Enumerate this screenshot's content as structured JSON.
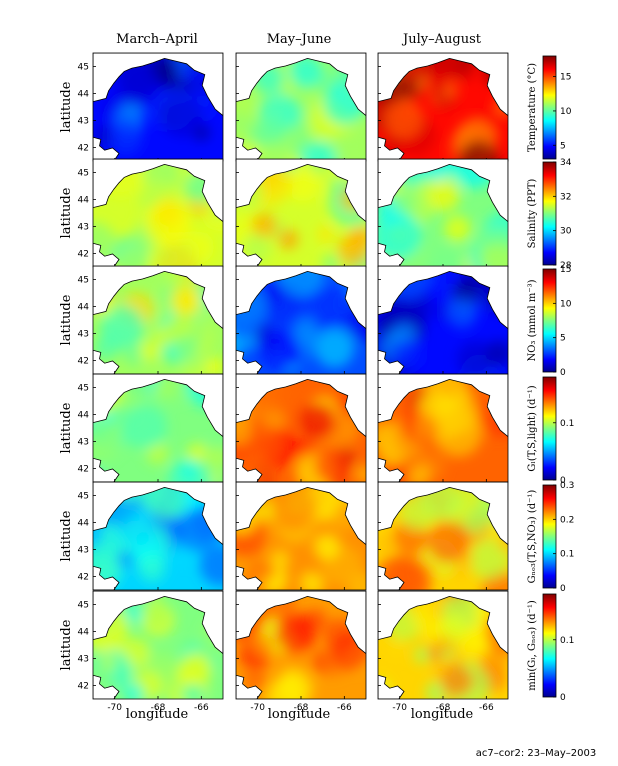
{
  "figure": {
    "columns": [
      "March–April",
      "May–June",
      "July–August"
    ],
    "ylabel": "latitude",
    "xlabel": "longitude",
    "lat_ticks": [
      "45",
      "44",
      "43",
      "42"
    ],
    "lon_ticks": [
      "-70",
      "-68",
      "-66"
    ],
    "footer": "ac7–cor2: 23–May–2003"
  },
  "colorbars": [
    {
      "label": "Temperature (°C)",
      "ticks": [
        "15",
        "10",
        "5"
      ]
    },
    {
      "label": "Salinity (PPT)",
      "ticks": [
        "34",
        "32",
        "30",
        "28"
      ]
    },
    {
      "label": "NO₃ (mmol m⁻³)",
      "ticks": [
        "15",
        "10",
        "5",
        "0"
      ]
    },
    {
      "label": "Gₗ(T,S,light) (d⁻¹)",
      "ticks": [
        "0.1",
        "0"
      ]
    },
    {
      "label": "Gₙₒ₃(T,S,NO₃) (d⁻¹)",
      "ticks": [
        "0.3",
        "0.2",
        "0.1",
        "0"
      ]
    },
    {
      "label": "min(Gₗ, Gₙₒ₃) (d⁻¹)",
      "ticks": [
        "0.1",
        "0"
      ]
    }
  ],
  "chart_data": {
    "type": "heatmap",
    "rows": [
      "Temperature",
      "Salinity",
      "NO3",
      "G_L",
      "G_NO3",
      "min(G_L,G_NO3)"
    ],
    "columns": [
      "March–April",
      "May–June",
      "July–August"
    ],
    "xlim": [
      -71,
      -65
    ],
    "ylim": [
      41.5,
      45.5
    ],
    "colormap": "jet",
    "color_ranges": [
      [
        3,
        18
      ],
      [
        28,
        34
      ],
      [
        0,
        15
      ],
      [
        0,
        0.18
      ],
      [
        0,
        0.3
      ],
      [
        0,
        0.18
      ]
    ],
    "panel_means": [
      [
        5,
        11,
        16
      ],
      [
        31.5,
        31.5,
        31
      ],
      [
        8,
        3,
        2
      ],
      [
        0.09,
        0.14,
        0.14
      ],
      [
        0.1,
        0.22,
        0.2
      ],
      [
        0.09,
        0.13,
        0.12
      ]
    ]
  }
}
